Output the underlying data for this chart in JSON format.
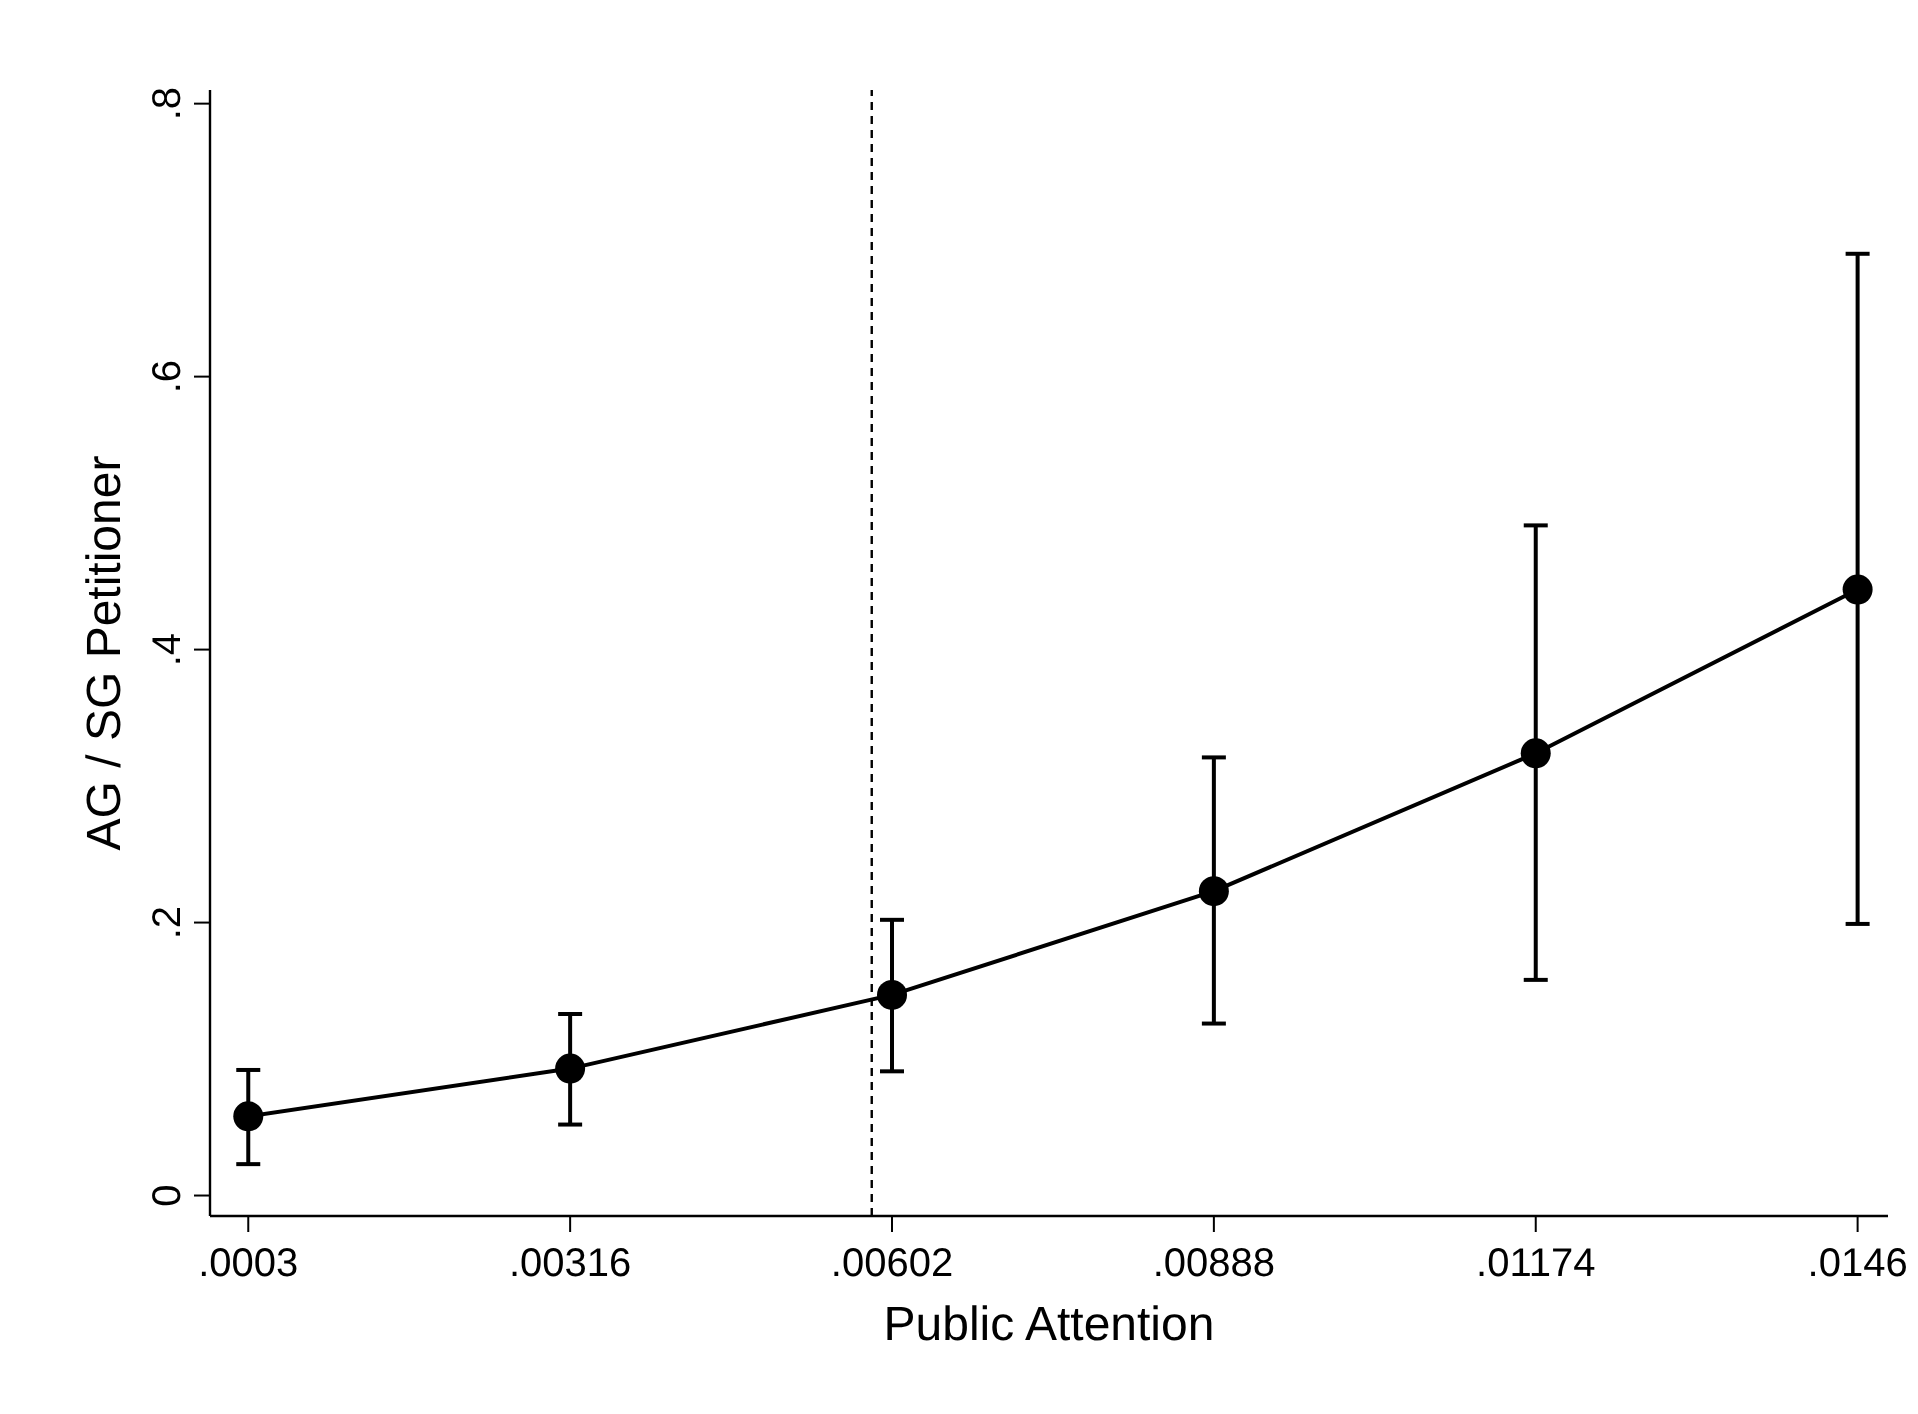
{
  "chart_data": {
    "type": "line",
    "xlabel": "Public Attention",
    "ylabel": "AG / SG Petitioner",
    "x": [
      0.0003,
      0.00316,
      0.00602,
      0.00888,
      0.01174,
      0.0146
    ],
    "series": [
      {
        "color": "#000000",
        "values": [
          0.058,
          0.093,
          0.147,
          0.223,
          0.324,
          0.444
        ],
        "errors": [
          [
            0.023,
            0.092
          ],
          [
            0.052,
            0.133
          ],
          [
            0.091,
            0.202
          ],
          [
            0.126,
            0.321
          ],
          [
            0.158,
            0.491
          ],
          [
            0.199,
            0.69
          ]
        ]
      }
    ],
    "xlim": [
      -4e-05,
      0.01487
    ],
    "ylim": [
      -0.015,
      0.81
    ],
    "xticks": [
      {
        "value": 0.0003,
        "label": ".0003"
      },
      {
        "value": 0.00316,
        "label": ".00316"
      },
      {
        "value": 0.00602,
        "label": ".00602"
      },
      {
        "value": 0.00888,
        "label": ".00888"
      },
      {
        "value": 0.01174,
        "label": ".01174"
      },
      {
        "value": 0.0146,
        "label": ".0146"
      }
    ],
    "yticks": [
      {
        "value": 0,
        "label": "0"
      },
      {
        "value": 0.2,
        "label": ".2"
      },
      {
        "value": 0.4,
        "label": ".4"
      },
      {
        "value": 0.6,
        "label": ".6"
      },
      {
        "value": 0.8,
        "label": ".8"
      }
    ],
    "ref_lines": [
      {
        "axis": "x",
        "value": 0.00584,
        "line_style": "dashed"
      }
    ],
    "marker": "circle",
    "line_style": "solid"
  }
}
